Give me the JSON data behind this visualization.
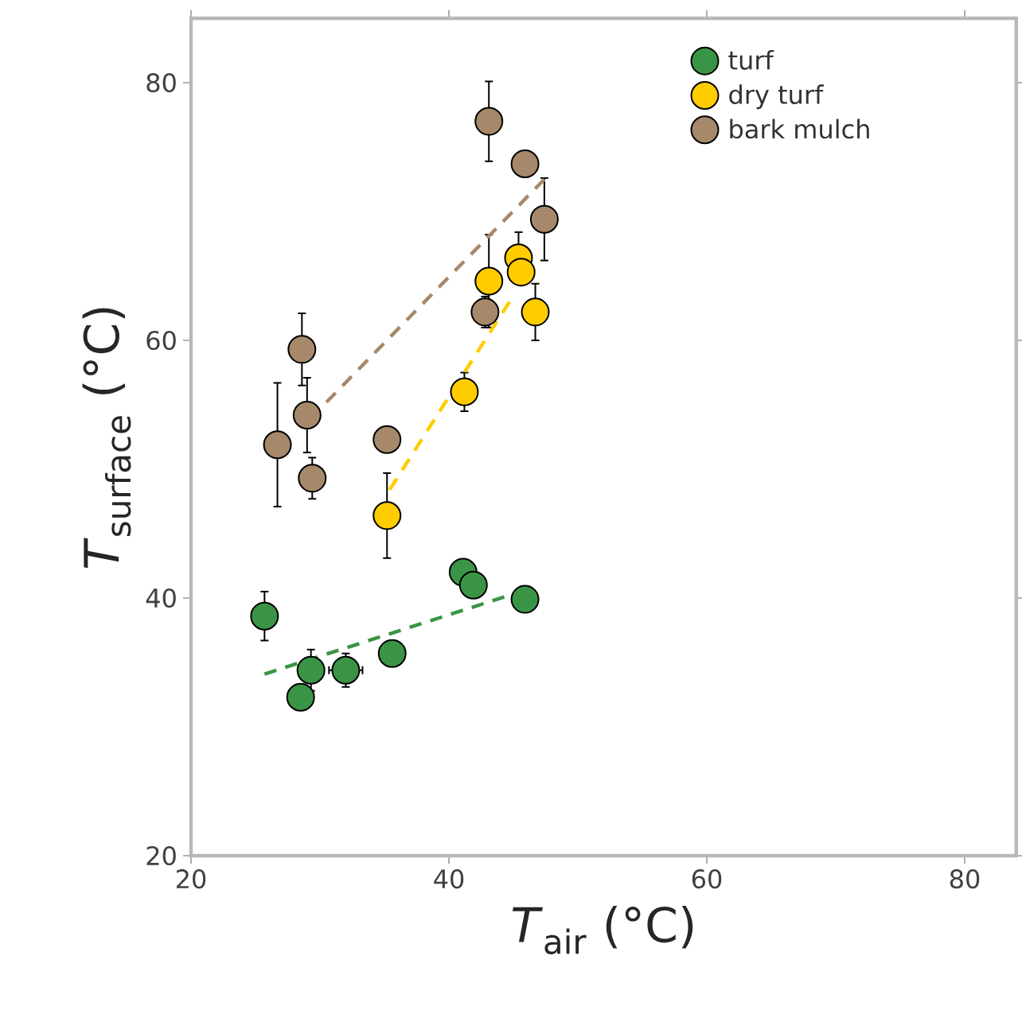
{
  "chart_data": {
    "type": "scatter",
    "xlabel": "*T*$_{air}$ (°C)",
    "ylabel": "*T*$_{surface}$ (°C)",
    "xlim": [
      20,
      84
    ],
    "ylim": [
      20,
      85
    ],
    "xticks": [
      20,
      40,
      60,
      80
    ],
    "yticks": [
      20,
      40,
      60,
      80
    ],
    "grid": false,
    "legend": "top right",
    "series": [
      {
        "name": "turf",
        "marker": "circle",
        "color": "#3a9445",
        "x": [
          25.7,
          28.5,
          29.3,
          32.0,
          35.6,
          41.1,
          41.9,
          45.9
        ],
        "values": [
          38.6,
          32.3,
          34.4,
          34.4,
          35.7,
          42.0,
          41.0,
          39.9
        ],
        "errors": [
          1.9,
          null,
          1.6,
          1.3,
          null,
          null,
          null,
          null
        ],
        "xerrors": [
          null,
          null,
          null,
          1.3,
          null,
          null,
          null,
          null
        ]
      },
      {
        "name": "dry turf",
        "marker": "circle",
        "color": "#ffcc00",
        "x": [
          35.2,
          41.2,
          43.1,
          45.4,
          45.6,
          46.7
        ],
        "values": [
          46.4,
          56.0,
          64.6,
          66.4,
          65.3,
          62.2
        ],
        "errors": [
          3.3,
          1.5,
          3.6,
          2.0,
          null,
          2.2
        ]
      },
      {
        "name": "bark mulch",
        "marker": "circle",
        "color": "#a6896a",
        "x": [
          26.7,
          28.6,
          29.0,
          29.4,
          35.2,
          43.1,
          42.8,
          45.9,
          47.4
        ],
        "values": [
          51.9,
          59.3,
          54.2,
          49.3,
          52.3,
          77.0,
          62.2,
          73.7,
          69.4
        ],
        "errors": [
          4.8,
          2.8,
          2.9,
          1.6,
          null,
          3.1,
          1.2,
          1.0,
          3.2
        ]
      },
      {
        "type": "line",
        "line_style": "dashed",
        "marker": "none",
        "color": "#3a9445",
        "x": [
          25.7,
          45.9
        ],
        "values": [
          34.1,
          40.6
        ]
      },
      {
        "type": "line",
        "line_style": "dashed",
        "marker": "none",
        "color": "#ffcc00",
        "x": [
          35.4,
          44.7
        ],
        "values": [
          48.4,
          63.0
        ]
      },
      {
        "type": "line",
        "line_style": "dashed",
        "marker": "none",
        "color": "#a6896a",
        "x": [
          30.5,
          47.4
        ],
        "values": [
          55.2,
          72.5
        ]
      }
    ]
  }
}
